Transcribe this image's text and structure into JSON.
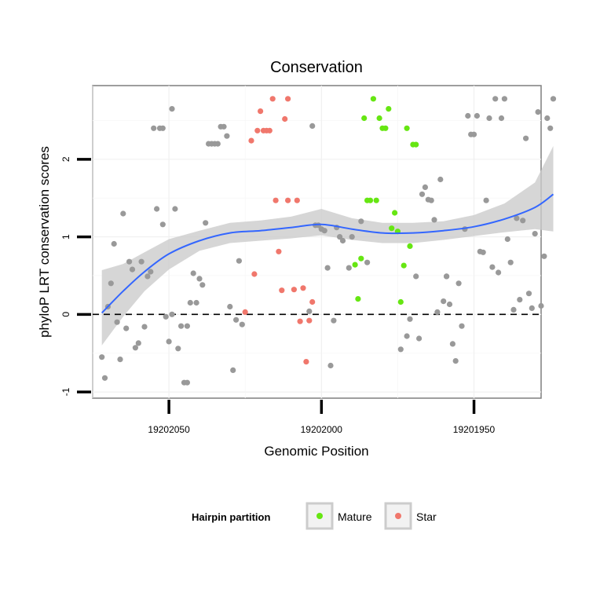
{
  "chart_data": {
    "type": "scatter",
    "title": "Conservation",
    "xlabel": "Genomic Position",
    "ylabel": "phyloP LRT conservation scores",
    "x_reversed": true,
    "xlim": [
      19202075,
      19201928
    ],
    "ylim": [
      -1.08,
      2.95
    ],
    "x_ticks": [
      19202050,
      19202000,
      19201950
    ],
    "x_tick_labels": [
      "19202050",
      "19202000",
      "19201950"
    ],
    "y_ticks": [
      -1,
      0,
      1,
      2
    ],
    "y_tick_labels": [
      "-1",
      "0",
      "1",
      "2"
    ],
    "grid": true,
    "reference_line": {
      "y": 0,
      "style": "dashed"
    },
    "legend": {
      "title": "Hairpin partition",
      "position": "bottom",
      "entries": [
        "Mature",
        "Star"
      ]
    },
    "colors": {
      "other": "#999999",
      "Mature": "#66e612",
      "Star": "#f0776c",
      "smooth": "#3366ff",
      "band": "#cccccc"
    },
    "series": [
      {
        "key": "other",
        "points": [
          [
            19202072,
            -0.55
          ],
          [
            19202071,
            -0.82
          ],
          [
            19202070,
            0.1
          ],
          [
            19202069,
            0.4
          ],
          [
            19202068,
            0.91
          ],
          [
            19202067,
            -0.1
          ],
          [
            19202066,
            -0.58
          ],
          [
            19202065,
            1.3
          ],
          [
            19202064,
            -0.18
          ],
          [
            19202063,
            0.68
          ],
          [
            19202062,
            0.58
          ],
          [
            19202061,
            -0.43
          ],
          [
            19202060,
            -0.37
          ],
          [
            19202059,
            0.68
          ],
          [
            19202058,
            -0.16
          ],
          [
            19202057,
            0.49
          ],
          [
            19202056,
            0.55
          ],
          [
            19202055,
            2.4
          ],
          [
            19202054,
            1.36
          ],
          [
            19202053,
            2.4
          ],
          [
            19202052,
            1.16
          ],
          [
            19202052,
            2.4
          ],
          [
            19202051,
            -0.03
          ],
          [
            19202050,
            -0.35
          ],
          [
            19202049,
            2.65
          ],
          [
            19202049,
            0.0
          ],
          [
            19202048,
            1.36
          ],
          [
            19202047,
            -0.44
          ],
          [
            19202046,
            -0.15
          ],
          [
            19202045,
            -0.88
          ],
          [
            19202044,
            -0.15
          ],
          [
            19202044,
            -0.88
          ],
          [
            19202043,
            0.15
          ],
          [
            19202042,
            0.53
          ],
          [
            19202041,
            0.15
          ],
          [
            19202040,
            0.46
          ],
          [
            19202039,
            0.38
          ],
          [
            19202038,
            1.18
          ],
          [
            19202037,
            2.2
          ],
          [
            19202036,
            2.2
          ],
          [
            19202035,
            2.2
          ],
          [
            19202034,
            2.2
          ],
          [
            19202033,
            2.42
          ],
          [
            19202032,
            2.42
          ],
          [
            19202031,
            2.3
          ],
          [
            19202030,
            0.1
          ],
          [
            19202029,
            -0.72
          ],
          [
            19202028,
            -0.07
          ],
          [
            19202027,
            0.69
          ],
          [
            19202026,
            -0.13
          ],
          [
            19202004,
            0.04
          ],
          [
            19202003,
            2.43
          ],
          [
            19202002,
            1.15
          ],
          [
            19202001,
            1.15
          ],
          [
            19202000,
            1.1
          ],
          [
            19201999,
            1.08
          ],
          [
            19201998,
            0.6
          ],
          [
            19201997,
            -0.66
          ],
          [
            19201996,
            -0.08
          ],
          [
            19201995,
            1.12
          ],
          [
            19201994,
            1.0
          ],
          [
            19201993,
            0.95
          ],
          [
            19201991,
            0.6
          ],
          [
            19201990,
            1.0
          ],
          [
            19201987,
            1.2
          ],
          [
            19201985,
            0.67
          ],
          [
            19201974,
            -0.45
          ],
          [
            19201972,
            -0.28
          ],
          [
            19201971,
            -0.06
          ],
          [
            19201969,
            0.49
          ],
          [
            19201968,
            -0.31
          ],
          [
            19201967,
            1.55
          ],
          [
            19201966,
            1.64
          ],
          [
            19201965,
            1.48
          ],
          [
            19201964,
            1.47
          ],
          [
            19201963,
            1.22
          ],
          [
            19201962,
            0.03
          ],
          [
            19201961,
            1.74
          ],
          [
            19201960,
            0.17
          ],
          [
            19201959,
            0.49
          ],
          [
            19201959,
            0.49
          ],
          [
            19201958,
            0.13
          ],
          [
            19201957,
            -0.38
          ],
          [
            19201956,
            -0.6
          ],
          [
            19201955,
            0.4
          ],
          [
            19201954,
            -0.15
          ],
          [
            19201953,
            1.1
          ],
          [
            19201952,
            2.56
          ],
          [
            19201951,
            2.32
          ],
          [
            19201950,
            2.32
          ],
          [
            19201949,
            2.56
          ],
          [
            19201948,
            0.81
          ],
          [
            19201947,
            0.8
          ],
          [
            19201946,
            1.47
          ],
          [
            19201945,
            2.53
          ],
          [
            19201944,
            0.61
          ],
          [
            19201943,
            2.78
          ],
          [
            19201942,
            0.54
          ],
          [
            19201941,
            2.53
          ],
          [
            19201940,
            2.78
          ],
          [
            19201939,
            0.97
          ],
          [
            19201938,
            0.67
          ],
          [
            19201937,
            0.06
          ],
          [
            19201936,
            1.24
          ],
          [
            19201935,
            0.19
          ],
          [
            19201934,
            1.21
          ],
          [
            19201933,
            2.27
          ],
          [
            19201932,
            0.27
          ],
          [
            19201931,
            0.08
          ],
          [
            19201930,
            1.04
          ],
          [
            19201929,
            2.61
          ],
          [
            19201928,
            0.11
          ],
          [
            19201927,
            0.75
          ],
          [
            19201926,
            2.53
          ],
          [
            19201925,
            2.4
          ],
          [
            19201924,
            2.78
          ]
        ]
      },
      {
        "key": "Star",
        "name": "Star",
        "points": [
          [
            19202025,
            0.03
          ],
          [
            19202023,
            2.24
          ],
          [
            19202022,
            0.52
          ],
          [
            19202021,
            2.37
          ],
          [
            19202020,
            2.62
          ],
          [
            19202019,
            2.37
          ],
          [
            19202018,
            2.37
          ],
          [
            19202017,
            2.37
          ],
          [
            19202016,
            2.78
          ],
          [
            19202015,
            1.47
          ],
          [
            19202014,
            0.81
          ],
          [
            19202013,
            0.31
          ],
          [
            19202011,
            2.78
          ],
          [
            19202011,
            1.47
          ],
          [
            19202012,
            2.52
          ],
          [
            19202009,
            0.32
          ],
          [
            19202008,
            1.47
          ],
          [
            19202007,
            -0.09
          ],
          [
            19202006,
            0.34
          ],
          [
            19202005,
            -0.61
          ],
          [
            19202004,
            -0.08
          ],
          [
            19202003,
            0.16
          ]
        ]
      },
      {
        "key": "Mature",
        "name": "Mature",
        "points": [
          [
            19201989,
            0.64
          ],
          [
            19201988,
            0.2
          ],
          [
            19201987,
            0.72
          ],
          [
            19201986,
            2.53
          ],
          [
            19201985,
            1.47
          ],
          [
            19201984,
            1.47
          ],
          [
            19201983,
            2.78
          ],
          [
            19201982,
            1.47
          ],
          [
            19201981,
            2.53
          ],
          [
            19201980,
            2.4
          ],
          [
            19201979,
            2.4
          ],
          [
            19201978,
            2.65
          ],
          [
            19201977,
            1.11
          ],
          [
            19201976,
            1.31
          ],
          [
            19201975,
            1.07
          ],
          [
            19201974,
            0.16
          ],
          [
            19201973,
            0.63
          ],
          [
            19201972,
            2.4
          ],
          [
            19201971,
            0.88
          ],
          [
            19201970,
            2.19
          ],
          [
            19201969,
            2.19
          ]
        ]
      }
    ],
    "smooth": {
      "x": [
        19202072,
        19202065,
        19202058,
        19202050,
        19202040,
        19202030,
        19202020,
        19202010,
        19202000,
        19201990,
        19201980,
        19201970,
        19201960,
        19201950,
        19201940,
        19201930,
        19201924
      ],
      "y": [
        0.02,
        0.3,
        0.55,
        0.78,
        0.95,
        1.05,
        1.08,
        1.12,
        1.16,
        1.1,
        1.05,
        1.05,
        1.08,
        1.13,
        1.23,
        1.38,
        1.55
      ],
      "lower": [
        -0.4,
        -0.03,
        0.3,
        0.58,
        0.82,
        0.92,
        0.95,
        0.98,
        1.02,
        0.96,
        0.92,
        0.92,
        0.96,
        1.01,
        1.06,
        1.1,
        1.07
      ],
      "upper": [
        0.57,
        0.65,
        0.8,
        0.97,
        1.08,
        1.18,
        1.21,
        1.26,
        1.36,
        1.24,
        1.18,
        1.18,
        1.2,
        1.28,
        1.43,
        1.7,
        2.17
      ]
    }
  }
}
